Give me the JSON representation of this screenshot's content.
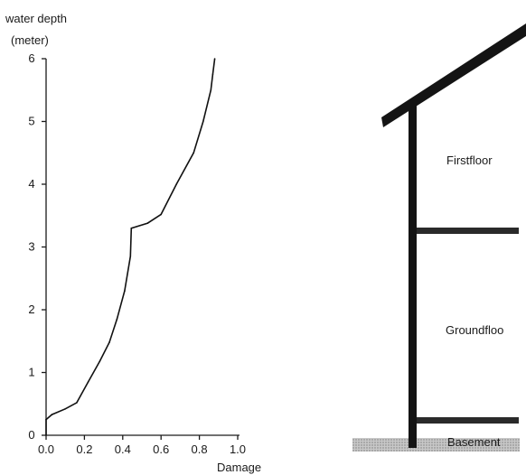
{
  "chart_data": {
    "type": "line",
    "ylabel_line1": "water depth",
    "ylabel_line2": "(meter)",
    "xlabel": "Damage",
    "xlim": [
      0,
      1.0
    ],
    "ylim": [
      0,
      6
    ],
    "x_ticks": [
      "0.0",
      "0.2",
      "0.4",
      "0.6",
      "0.8",
      "1.0"
    ],
    "y_ticks": [
      "0",
      "1",
      "2",
      "3",
      "4",
      "5",
      "6"
    ],
    "grid": false,
    "series": [
      {
        "points": [
          [
            0.0,
            0.0
          ],
          [
            0.0,
            0.25
          ],
          [
            0.03,
            0.33
          ],
          [
            0.1,
            0.42
          ],
          [
            0.16,
            0.52
          ],
          [
            0.22,
            0.85
          ],
          [
            0.28,
            1.18
          ],
          [
            0.33,
            1.48
          ],
          [
            0.37,
            1.85
          ],
          [
            0.41,
            2.3
          ],
          [
            0.44,
            2.85
          ],
          [
            0.445,
            3.3
          ],
          [
            0.53,
            3.38
          ],
          [
            0.6,
            3.52
          ],
          [
            0.68,
            4.0
          ],
          [
            0.77,
            4.5
          ],
          [
            0.82,
            5.0
          ],
          [
            0.86,
            5.5
          ],
          [
            0.87,
            5.75
          ],
          [
            0.88,
            6.0
          ]
        ]
      }
    ]
  },
  "diagram": {
    "labels": {
      "first_floor": "Firstfloor",
      "ground_floor": "Groundfloo",
      "basement": "Basement"
    }
  }
}
